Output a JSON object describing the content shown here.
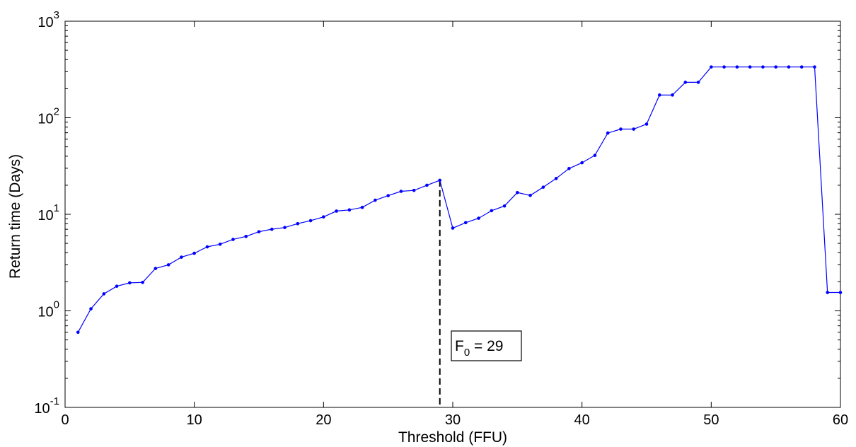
{
  "chart_data": {
    "type": "line",
    "title": "",
    "xlabel": "Threshold (FFU)",
    "ylabel": "Return time (Days)",
    "xlim": [
      0,
      60
    ],
    "ylim": [
      0.1,
      1000
    ],
    "yscale": "log",
    "x_ticks": [
      0,
      10,
      20,
      30,
      40,
      50,
      60
    ],
    "y_ticks": [
      {
        "value": 0.1,
        "base": "10",
        "exp": "-1"
      },
      {
        "value": 1,
        "base": "10",
        "exp": "0"
      },
      {
        "value": 10,
        "base": "10",
        "exp": "1"
      },
      {
        "value": 100,
        "base": "10",
        "exp": "2"
      },
      {
        "value": 1000,
        "base": "10",
        "exp": "3"
      }
    ],
    "grid": false,
    "series": [
      {
        "color": "#0000ff",
        "marker": "dot",
        "x": [
          1,
          2,
          3,
          4,
          5,
          6,
          7,
          8,
          9,
          10,
          11,
          12,
          13,
          14,
          15,
          16,
          17,
          18,
          19,
          20,
          21,
          22,
          23,
          24,
          25,
          26,
          27,
          28,
          29,
          30,
          31,
          32,
          33,
          34,
          35,
          36,
          37,
          38,
          39,
          40,
          41,
          42,
          43,
          44,
          45,
          46,
          47,
          48,
          49,
          50,
          51,
          52,
          53,
          54,
          55,
          56,
          57,
          58,
          59,
          60
        ],
        "y": [
          0.6,
          1.05,
          1.5,
          1.8,
          1.95,
          1.97,
          2.75,
          3.0,
          3.6,
          3.95,
          4.6,
          4.9,
          5.5,
          5.9,
          6.6,
          7.0,
          7.3,
          8.0,
          8.6,
          9.4,
          10.8,
          11.1,
          11.8,
          14.0,
          15.6,
          17.3,
          17.7,
          20.0,
          22.5,
          7.2,
          8.2,
          9.1,
          10.9,
          12.2,
          16.8,
          15.7,
          19.1,
          23.5,
          29.8,
          34.2,
          40.8,
          69.5,
          76.3,
          76.3,
          86.0,
          172,
          172,
          233,
          233,
          336,
          336,
          336,
          336,
          336,
          336,
          336,
          336,
          336,
          1.55,
          1.55
        ]
      }
    ],
    "marker_line": {
      "x": 29,
      "style": "dashed",
      "color": "#000000"
    },
    "annotation": {
      "label_main": "F",
      "label_sub": "0",
      "label_rest": " = 29"
    }
  }
}
